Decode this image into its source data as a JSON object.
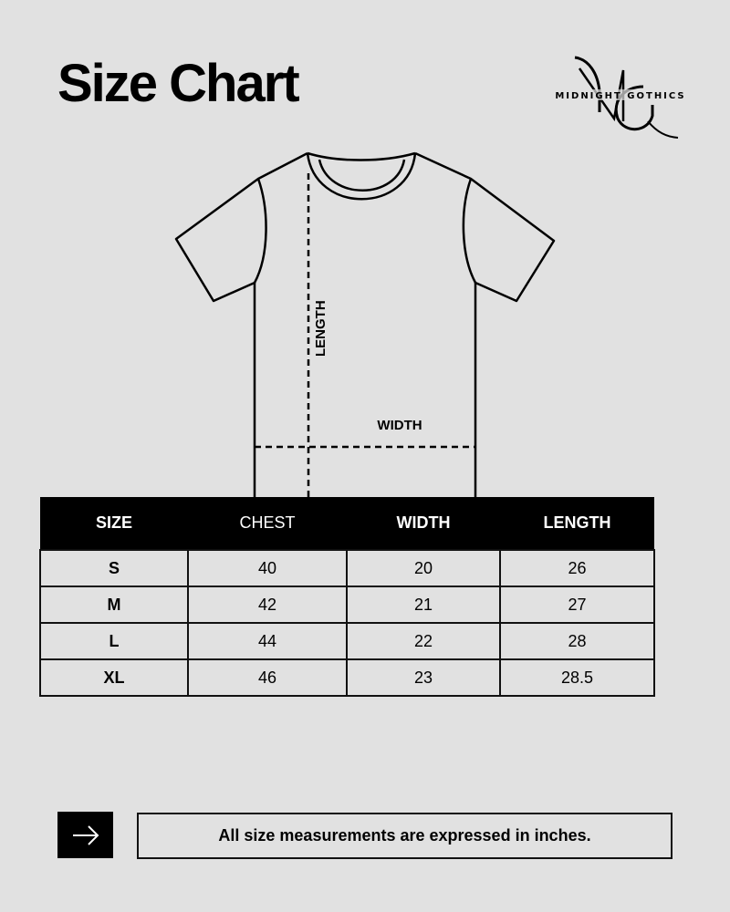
{
  "header": {
    "title": "Size Chart",
    "brand": "MIDNIGHT GOTHICS",
    "brand_monogram": "MG"
  },
  "diagram": {
    "length_label": "LENGTH",
    "width_label": "WIDTH"
  },
  "table": {
    "columns": [
      "SIZE",
      "CHEST",
      "WIDTH",
      "LENGTH"
    ],
    "rows": [
      [
        "S",
        "40",
        "20",
        "26"
      ],
      [
        "M",
        "42",
        "21",
        "27"
      ],
      [
        "L",
        "44",
        "22",
        "28"
      ],
      [
        "XL",
        "46",
        "23",
        "28.5"
      ]
    ]
  },
  "footer": {
    "icon": "arrow-right-icon",
    "note": "All size measurements are expressed in inches."
  }
}
